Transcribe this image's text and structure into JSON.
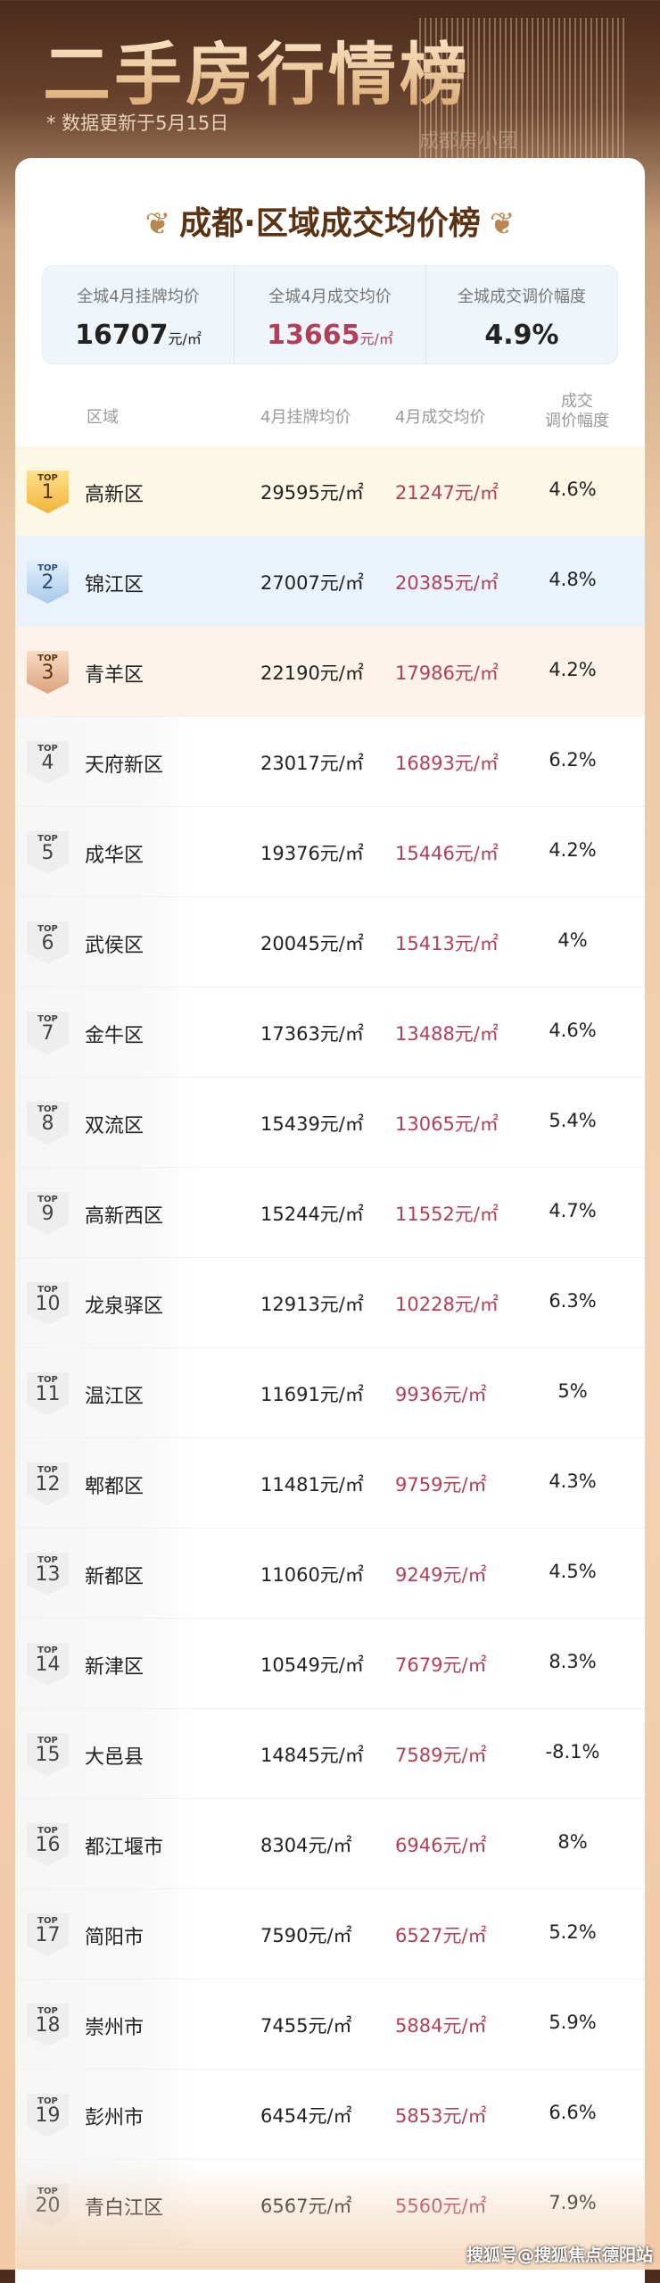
{
  "header": {
    "title": "二手房行情榜",
    "update_note": "* 数据更新于5月15日"
  },
  "card": {
    "title": "成都·区域成交均价榜",
    "summary": [
      {
        "label": "全城4月挂牌均价",
        "value": "16707",
        "unit": "元/㎡"
      },
      {
        "label": "全城4月成交均价",
        "value": "13665",
        "unit": "元/㎡"
      },
      {
        "label": "全城成交调价幅度",
        "value": "4.9%",
        "unit": ""
      }
    ],
    "columns": {
      "region": "区域",
      "listed": "4月挂牌均价",
      "deal": "4月成交均价",
      "change_line1": "成交",
      "change_line2": "调价幅度"
    },
    "badge_prefix": "TOP",
    "rows": [
      {
        "rank": "1",
        "name": "高新区",
        "listed": "29595元/㎡",
        "deal": "21247元/㎡",
        "change": "4.6%"
      },
      {
        "rank": "2",
        "name": "锦江区",
        "listed": "27007元/㎡",
        "deal": "20385元/㎡",
        "change": "4.8%"
      },
      {
        "rank": "3",
        "name": "青羊区",
        "listed": "22190元/㎡",
        "deal": "17986元/㎡",
        "change": "4.2%"
      },
      {
        "rank": "4",
        "name": "天府新区",
        "listed": "23017元/㎡",
        "deal": "16893元/㎡",
        "change": "6.2%"
      },
      {
        "rank": "5",
        "name": "成华区",
        "listed": "19376元/㎡",
        "deal": "15446元/㎡",
        "change": "4.2%"
      },
      {
        "rank": "6",
        "name": "武侯区",
        "listed": "20045元/㎡",
        "deal": "15413元/㎡",
        "change": "4%"
      },
      {
        "rank": "7",
        "name": "金牛区",
        "listed": "17363元/㎡",
        "deal": "13488元/㎡",
        "change": "4.6%"
      },
      {
        "rank": "8",
        "name": "双流区",
        "listed": "15439元/㎡",
        "deal": "13065元/㎡",
        "change": "5.4%"
      },
      {
        "rank": "9",
        "name": "高新西区",
        "listed": "15244元/㎡",
        "deal": "11552元/㎡",
        "change": "4.7%"
      },
      {
        "rank": "10",
        "name": "龙泉驿区",
        "listed": "12913元/㎡",
        "deal": "10228元/㎡",
        "change": "6.3%"
      },
      {
        "rank": "11",
        "name": "温江区",
        "listed": "11691元/㎡",
        "deal": "9936元/㎡",
        "change": "5%"
      },
      {
        "rank": "12",
        "name": "郫都区",
        "listed": "11481元/㎡",
        "deal": "9759元/㎡",
        "change": "4.3%"
      },
      {
        "rank": "13",
        "name": "新都区",
        "listed": "11060元/㎡",
        "deal": "9249元/㎡",
        "change": "4.5%"
      },
      {
        "rank": "14",
        "name": "新津区",
        "listed": "10549元/㎡",
        "deal": "7679元/㎡",
        "change": "8.3%"
      },
      {
        "rank": "15",
        "name": "大邑县",
        "listed": "14845元/㎡",
        "deal": "7589元/㎡",
        "change": "-8.1%"
      },
      {
        "rank": "16",
        "name": "都江堰市",
        "listed": "8304元/㎡",
        "deal": "6946元/㎡",
        "change": "8%"
      },
      {
        "rank": "17",
        "name": "简阳市",
        "listed": "7590元/㎡",
        "deal": "6527元/㎡",
        "change": "5.2%"
      },
      {
        "rank": "18",
        "name": "崇州市",
        "listed": "7455元/㎡",
        "deal": "5884元/㎡",
        "change": "5.9%"
      },
      {
        "rank": "19",
        "name": "彭州市",
        "listed": "6454元/㎡",
        "deal": "5853元/㎡",
        "change": "6.6%"
      },
      {
        "rank": "20",
        "name": "青白江区",
        "listed": "6567元/㎡",
        "deal": "5560元/㎡",
        "change": "7.9%"
      }
    ]
  },
  "watermark": "成都房小团",
  "source_credit": "搜狐号@搜狐焦点德阳站",
  "colors": {
    "deal_price": "#b0405a",
    "gold": "#f3c14e",
    "silver_blue": "#cfe3f6",
    "bronze": "#efc7a6"
  }
}
